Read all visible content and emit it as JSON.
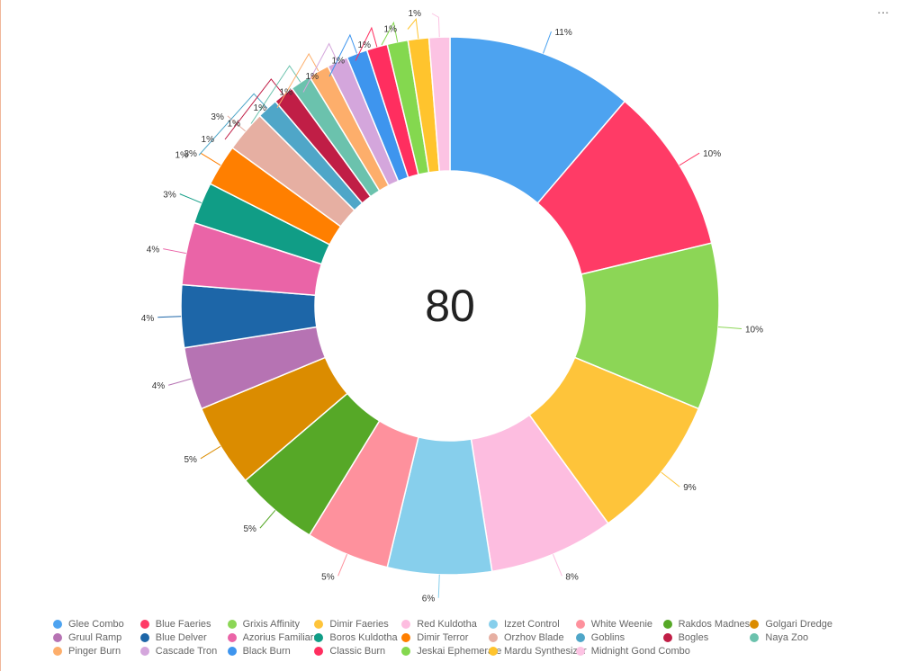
{
  "menu": {
    "icon": "more-dots-icon",
    "label": "..."
  },
  "chart_data": {
    "type": "pie",
    "style": "donut",
    "center_label": "80",
    "legend_position": "bottom",
    "slices": [
      {
        "name": "Glee Combo",
        "value": 9,
        "label": "11%",
        "color": "#4da3f0"
      },
      {
        "name": "Blue Faeries",
        "value": 8,
        "label": "10%",
        "color": "#ff3b66"
      },
      {
        "name": "Grixis Affinity",
        "value": 8,
        "label": "10%",
        "color": "#8cd656"
      },
      {
        "name": "Dimir Faeries",
        "value": 7,
        "label": "9%",
        "color": "#fec43a"
      },
      {
        "name": "Red Kuldotha",
        "value": 6,
        "label": "8%",
        "color": "#fdbde0"
      },
      {
        "name": "Izzet Control",
        "value": 5,
        "label": "6%",
        "color": "#87cfec"
      },
      {
        "name": "White Weenie",
        "value": 4,
        "label": "5%",
        "color": "#fe919d"
      },
      {
        "name": "Rakdos Madness",
        "value": 4,
        "label": "5%",
        "color": "#56a827"
      },
      {
        "name": "Golgari Dredge",
        "value": 4,
        "label": "5%",
        "color": "#db8c00"
      },
      {
        "name": "Gruul Ramp",
        "value": 3,
        "label": "4%",
        "color": "#b673b3"
      },
      {
        "name": "Blue Delver",
        "value": 3,
        "label": "4%",
        "color": "#1d66a8"
      },
      {
        "name": "Azorius Familiars",
        "value": 3,
        "label": "4%",
        "color": "#ea64a7"
      },
      {
        "name": "Boros Kuldotha",
        "value": 2,
        "label": "3%",
        "color": "#109d86"
      },
      {
        "name": "Dimir Terror",
        "value": 2,
        "label": "3%",
        "color": "#ff7f00"
      },
      {
        "name": "Orzhov Blade",
        "value": 2,
        "label": "3%",
        "color": "#e6afa2"
      },
      {
        "name": "Goblins",
        "value": 1,
        "label": "1%",
        "color": "#4fa6c8"
      },
      {
        "name": "Bogles",
        "value": 1,
        "label": "1%",
        "color": "#c01e46"
      },
      {
        "name": "Naya Zoo",
        "value": 1,
        "label": "1%",
        "color": "#6bc2ad"
      },
      {
        "name": "Pinger Burn",
        "value": 1,
        "label": "1%",
        "color": "#fdae6b"
      },
      {
        "name": "Cascade Tron",
        "value": 1,
        "label": "1%",
        "color": "#d4a6dc"
      },
      {
        "name": "Black Burn",
        "value": 1,
        "label": "1%",
        "color": "#3e95ee"
      },
      {
        "name": "Classic Burn",
        "value": 1,
        "label": "1%",
        "color": "#ff2e5f"
      },
      {
        "name": "Jeskai Ephemerate",
        "value": 1,
        "label": "1%",
        "color": "#84d84f"
      },
      {
        "name": "Mardu Synthesizer",
        "value": 1,
        "label": "1%",
        "color": "#ffc42d"
      },
      {
        "name": "Midnight Gond Combo",
        "value": 1,
        "label": "1%",
        "color": "#fcc3e3"
      }
    ]
  }
}
